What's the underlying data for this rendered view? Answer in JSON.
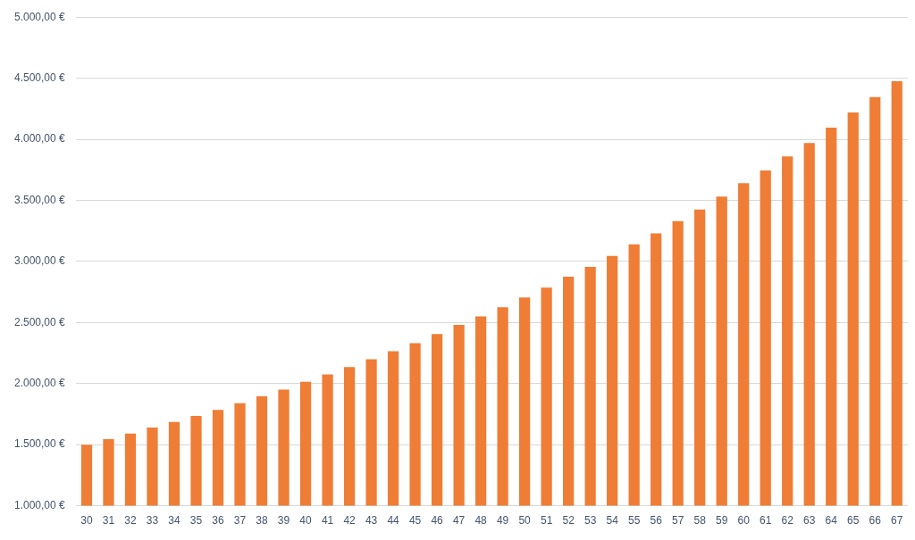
{
  "chart_data": {
    "type": "bar",
    "categories": [
      "30",
      "31",
      "32",
      "33",
      "34",
      "35",
      "36",
      "37",
      "38",
      "39",
      "40",
      "41",
      "42",
      "43",
      "44",
      "45",
      "46",
      "47",
      "48",
      "49",
      "50",
      "51",
      "52",
      "53",
      "54",
      "55",
      "56",
      "57",
      "58",
      "59",
      "60",
      "61",
      "62",
      "63",
      "64",
      "65",
      "66",
      "67"
    ],
    "values": [
      1500,
      1545,
      1590,
      1640,
      1685,
      1735,
      1785,
      1840,
      1895,
      1950,
      2015,
      2075,
      2135,
      2200,
      2265,
      2330,
      2405,
      2480,
      2550,
      2625,
      2705,
      2785,
      2875,
      2955,
      3045,
      3140,
      3230,
      3330,
      3425,
      3530,
      3640,
      3745,
      3860,
      3970,
      4095,
      4220,
      4345,
      4475
    ],
    "color": "#ef7d36",
    "ylim": [
      1000,
      5000
    ],
    "yticks": [
      {
        "value": 1000,
        "label": "1.000,00 €"
      },
      {
        "value": 1500,
        "label": "1.500,00 €"
      },
      {
        "value": 2000,
        "label": "2.000,00 €"
      },
      {
        "value": 2500,
        "label": "2.500,00 €"
      },
      {
        "value": 3000,
        "label": "3.000,00 €"
      },
      {
        "value": 3500,
        "label": "3.500,00 €"
      },
      {
        "value": 4000,
        "label": "4.000,00 €"
      },
      {
        "value": 4500,
        "label": "4.500,00 €"
      },
      {
        "value": 5000,
        "label": "5.000,00 €"
      }
    ],
    "grid": "y"
  }
}
